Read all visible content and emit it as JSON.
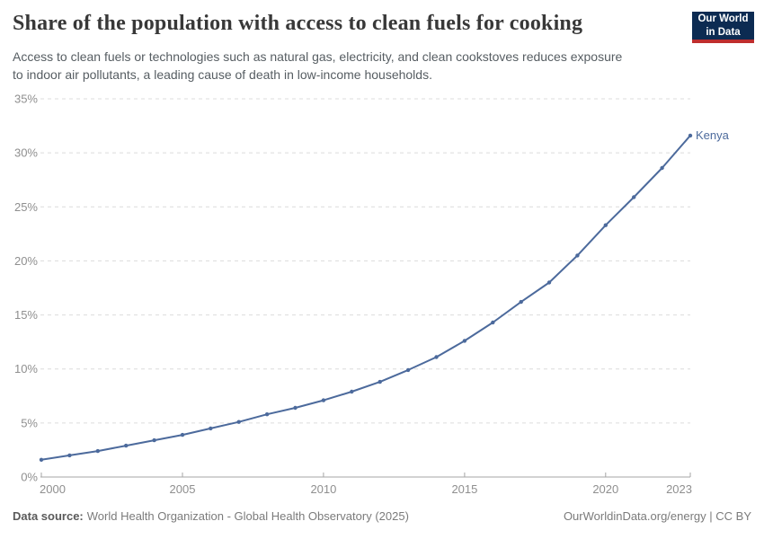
{
  "header": {
    "title": "Share of the population with access to clean fuels for cooking",
    "subtitle_lines": [
      "Access to clean fuels or technologies such as natural gas, electricity, and clean cookstoves reduces exposure",
      "to indoor air pollutants, a leading cause of death in low-income households."
    ],
    "logo_lines": [
      "Our World",
      "in Data"
    ]
  },
  "chart_data": {
    "type": "line",
    "title": "Share of the population with access to clean fuels for cooking",
    "xlabel": "",
    "ylabel": "",
    "x_range": [
      2000,
      2023
    ],
    "ylim": [
      0,
      35
    ],
    "grid": "horizontal-dashed",
    "legend_position": "end-of-line-label",
    "y_ticks": [
      0,
      5,
      10,
      15,
      20,
      25,
      30,
      35
    ],
    "y_tick_labels": [
      "0%",
      "5%",
      "10%",
      "15%",
      "20%",
      "25%",
      "30%",
      "35%"
    ],
    "x_ticks": [
      2000,
      2005,
      2010,
      2015,
      2020,
      2023
    ],
    "x_tick_labels": [
      "2000",
      "2005",
      "2010",
      "2015",
      "2020",
      "2023"
    ],
    "series": [
      {
        "name": "Kenya",
        "x": [
          2000,
          2001,
          2002,
          2003,
          2004,
          2005,
          2006,
          2007,
          2008,
          2009,
          2010,
          2011,
          2012,
          2013,
          2014,
          2015,
          2016,
          2017,
          2018,
          2019,
          2020,
          2021,
          2022,
          2023
        ],
        "values": [
          1.6,
          2.0,
          2.4,
          2.9,
          3.4,
          3.9,
          4.5,
          5.1,
          5.8,
          6.4,
          7.1,
          7.9,
          8.8,
          9.9,
          11.1,
          12.6,
          14.3,
          16.2,
          18.0,
          20.5,
          23.3,
          25.9,
          28.6,
          31.6
        ]
      }
    ]
  },
  "footer": {
    "data_source_label": "Data source:",
    "data_source_value": "World Health Organization - Global Health Observatory (2025)",
    "site_credit": "OurWorldinData.org/energy | CC BY"
  },
  "colors": {
    "line": "#4c6a9c",
    "series_label": "#4c6a9c",
    "grid": "#dcdcdc",
    "axis": "#a5a5a5",
    "tick_text": "#8f8f8f",
    "logo_bg": "#0c2b52",
    "logo_stripe": "#bf2e2e"
  }
}
